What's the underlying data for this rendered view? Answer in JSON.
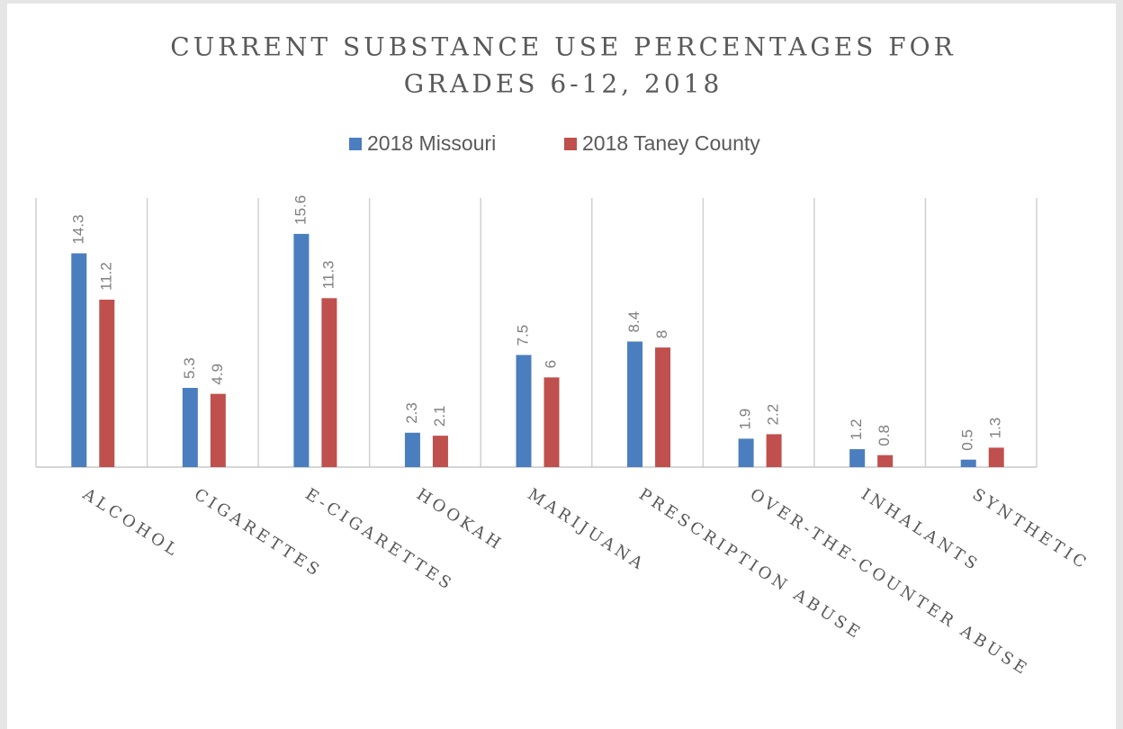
{
  "chart_data": {
    "type": "bar",
    "title": [
      "CURRENT SUBSTANCE USE PERCENTAGES FOR",
      "GRADES 6-12, 2018"
    ],
    "categories": [
      "ALCOHOL",
      "CIGARETTES",
      "E-CIGARETTES",
      "HOOKAH",
      "MARIJUANA",
      "PRESCRIPTION ABUSE",
      "OVER-THE-COUNTER ABUSE",
      "INHALANTS",
      "SYNTHETIC"
    ],
    "series": [
      {
        "name": "2018 Missouri",
        "color": "#4a7ebf",
        "values": [
          14.3,
          5.3,
          15.6,
          2.3,
          7.5,
          8.4,
          1.9,
          1.2,
          0.5
        ]
      },
      {
        "name": "2018 Taney County",
        "color": "#c0504d",
        "values": [
          11.2,
          4.9,
          11.3,
          2.1,
          6,
          8,
          2.2,
          0.8,
          1.3
        ]
      }
    ],
    "ylim": [
      0,
      18
    ],
    "legend": "top"
  }
}
